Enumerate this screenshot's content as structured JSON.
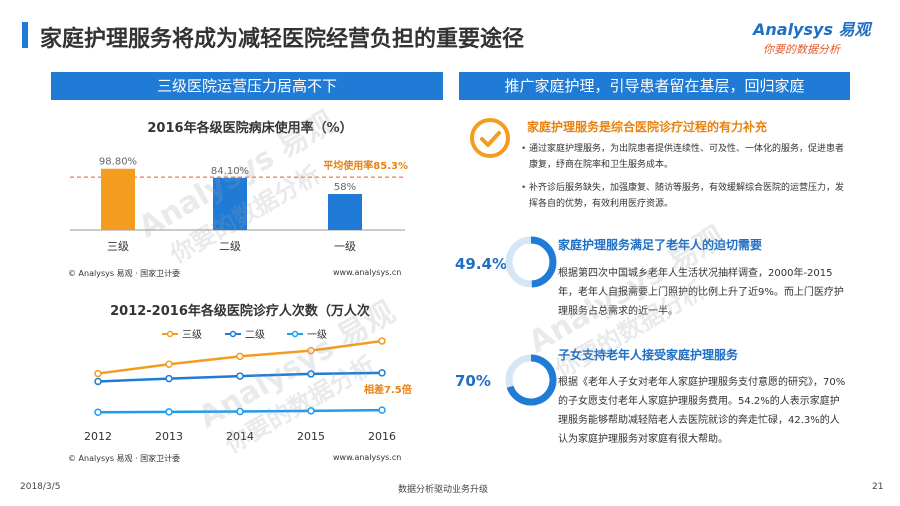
{
  "title": "家庭护理服务将成为减轻医院经营负担的重要途径",
  "logo": {
    "brand": "Analysys 易观",
    "tagline": "你要的数据分析"
  },
  "left_banner": "三级医院运营压力居高不下",
  "right_banner": "推广家庭护理，引导患者留在基层，回归家庭",
  "bed_chart_title": "2016年各级医院病床使用率（%）",
  "bed_avg_label": "平均使用率85.3%",
  "bed_source": "© Analysys 易观 · 国家卫计委",
  "bed_site": "www.analysys.cn",
  "visits_chart_title": "2012-2016年各级医院诊疗人次数（万人次",
  "visits_note": "相差7.5倍",
  "visits_source": "© Analysys 易观 · 国家卫计委",
  "visits_site": "www.analysys.cn",
  "chart_data": [
    {
      "type": "bar",
      "title": "2016年各级医院病床使用率（%）",
      "categories": [
        "三级",
        "二级",
        "一级"
      ],
      "values": [
        98.8,
        84.1,
        58
      ],
      "value_labels": [
        "98.80%",
        "84.10%",
        "58%"
      ],
      "colors": [
        "#f39c1f",
        "#1f7bd6",
        "#1f7bd6"
      ],
      "reference_line": {
        "value": 85.3,
        "label": "平均使用率85.3%"
      },
      "ylim": [
        0,
        100
      ]
    },
    {
      "type": "line",
      "title": "2012-2016年各级医院诊疗人次数（万人次",
      "x": [
        "2012",
        "2013",
        "2014",
        "2015",
        "2016"
      ],
      "series": [
        {
          "name": "三级",
          "color": "#f39c1f",
          "values": [
            12.4,
            15.0,
            17.2,
            18.8,
            21.5
          ]
        },
        {
          "name": "二级",
          "color": "#1f7bd6",
          "values": [
            10.2,
            11.0,
            11.7,
            12.3,
            12.6
          ]
        },
        {
          "name": "一级",
          "color": "#1f9cf0",
          "values": [
            1.6,
            1.7,
            1.8,
            2.0,
            2.2
          ]
        }
      ],
      "annotation": "相差7.5倍",
      "ylim": [
        0,
        24
      ]
    }
  ],
  "section1": {
    "title": "家庭护理服务是综合医院诊疗过程的有力补充",
    "bullets": [
      "通过家庭护理服务，为出院患者提供连续性、可及性、一体化的服务，促进患者康复，纾商在院率和卫生服务成本。",
      "补齐诊后服务缺失，加强康复、随访等服务，有效缓解综合医院的运营压力，发挥各自的优势，有效利用医疗资源。"
    ]
  },
  "section2": {
    "pct": "49.4%",
    "pct_value": 49.4,
    "title": "家庭护理服务满足了老年人的迫切需要",
    "text": "根据第四次中国城乡老年人生活状况抽样调查，2000年-2015年，老年人自报需要上门照护的比例上升了近9%。而上门医疗护理服务占总需求的近一半。"
  },
  "section3": {
    "pct": "70%",
    "pct_value": 70,
    "title": "子女支持老年人接受家庭护理服务",
    "text": "根据《老年人子女对老年人家庭护理服务支付意愿的研究》，70%的子女愿支付老年人家庭护理服务费用。54.2%的人表示家庭护理服务能够帮助减轻陪老人去医院就诊的奔走忙碌，42.3%的人认为家庭护理服务对家庭有很大帮助。"
  },
  "footer": {
    "date": "2018/3/5",
    "center": "数据分析驱动业务升级",
    "page": "21"
  },
  "watermark": {
    "line1": "Analysys 易观",
    "line2": "你要的数据分析"
  }
}
